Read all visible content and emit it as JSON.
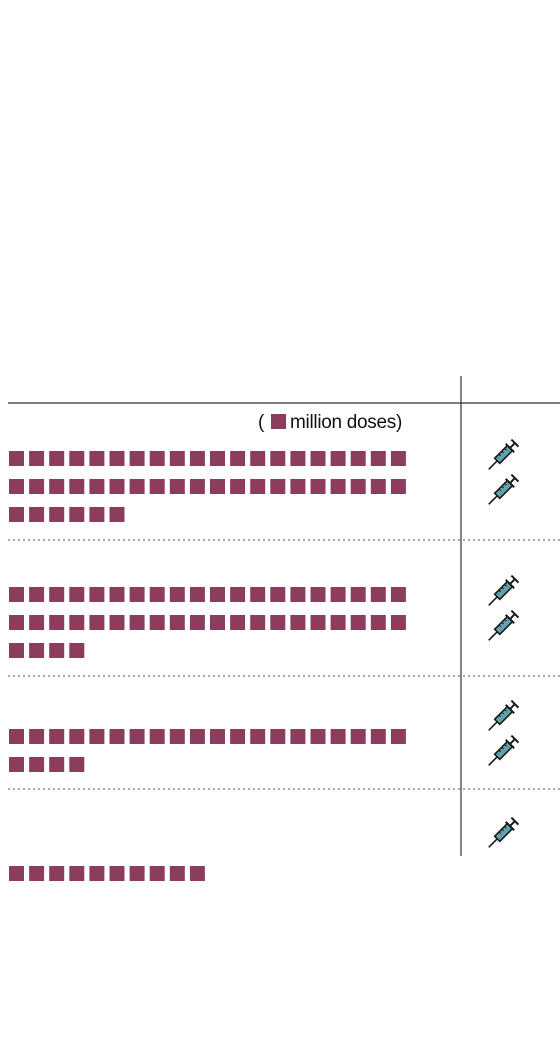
{
  "chart_data": {
    "type": "pictogram",
    "unit_label": "million doses",
    "colors": {
      "square": "#8c3d5e",
      "syringe_barrel": "#5fa3ad",
      "syringe_ink": "#1a1a1a",
      "rule": "#333333"
    },
    "rows": [
      {
        "doses_million": 46,
        "syringes": 2
      },
      {
        "doses_million": 44,
        "syringes": 2
      },
      {
        "doses_million": 24,
        "syringes": 2
      },
      {
        "doses_million": 10,
        "syringes": 1
      }
    ]
  }
}
